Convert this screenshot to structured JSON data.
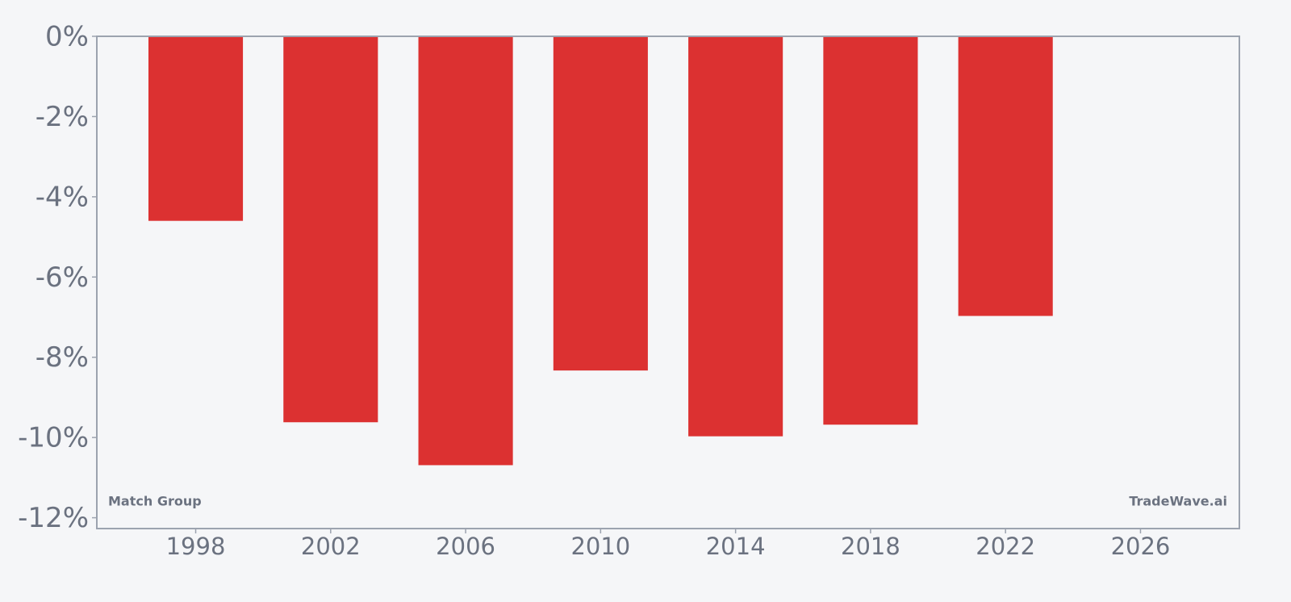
{
  "chart_data": {
    "type": "bar",
    "x": [
      1998,
      2002,
      2006,
      2010,
      2014,
      2018,
      2022
    ],
    "values": [
      -4.6,
      -9.62,
      -10.69,
      -8.33,
      -9.97,
      -9.68,
      -6.97
    ],
    "color": "#dc3131",
    "xlim": [
      1995.07,
      2028.93
    ],
    "xticks": [
      1998,
      2002,
      2006,
      2010,
      2014,
      2018,
      2022,
      2026
    ],
    "ylim": [
      -12.27,
      0
    ],
    "yticks": [
      {
        "value": 0,
        "label": "0%"
      },
      {
        "value": -2,
        "label": "-2%"
      },
      {
        "value": -4,
        "label": "-4%"
      },
      {
        "value": -6,
        "label": "-6%"
      },
      {
        "value": -8,
        "label": "-8%"
      },
      {
        "value": -10,
        "label": "-10%"
      },
      {
        "value": -12,
        "label": "-12%"
      }
    ],
    "annotations": [
      "Match Group",
      "TradeWave.ai"
    ],
    "grid": false
  }
}
